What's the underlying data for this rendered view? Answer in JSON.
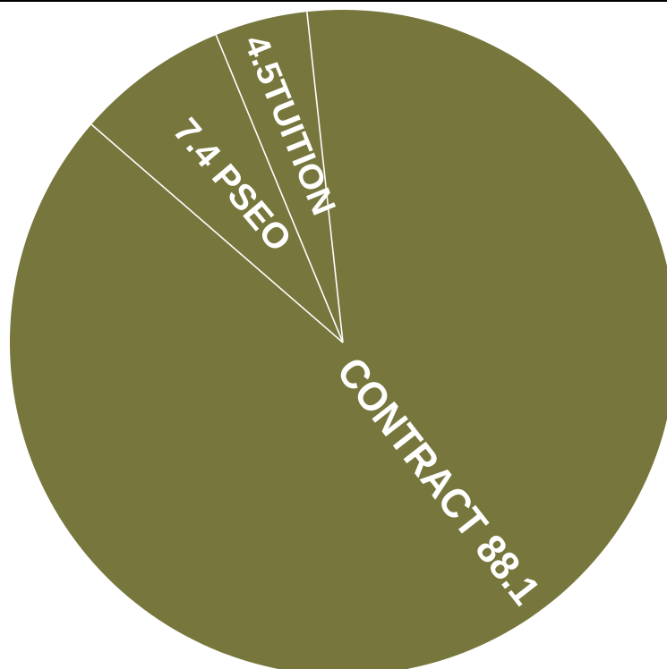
{
  "chart_data": {
    "type": "pie",
    "title": "",
    "slices": [
      {
        "name": "CONTRACT",
        "value": 88.1,
        "label": "CONTRACT 88.1",
        "color": "#76763d"
      },
      {
        "name": "PSEO",
        "value": 7.4,
        "label": "7.4 PSEO",
        "color": "#76763d"
      },
      {
        "name": "TUITION",
        "value": 4.5,
        "label": "4.5TUITION",
        "color": "#76763d"
      }
    ],
    "divider_color": "#ffffff",
    "legend": "none"
  }
}
